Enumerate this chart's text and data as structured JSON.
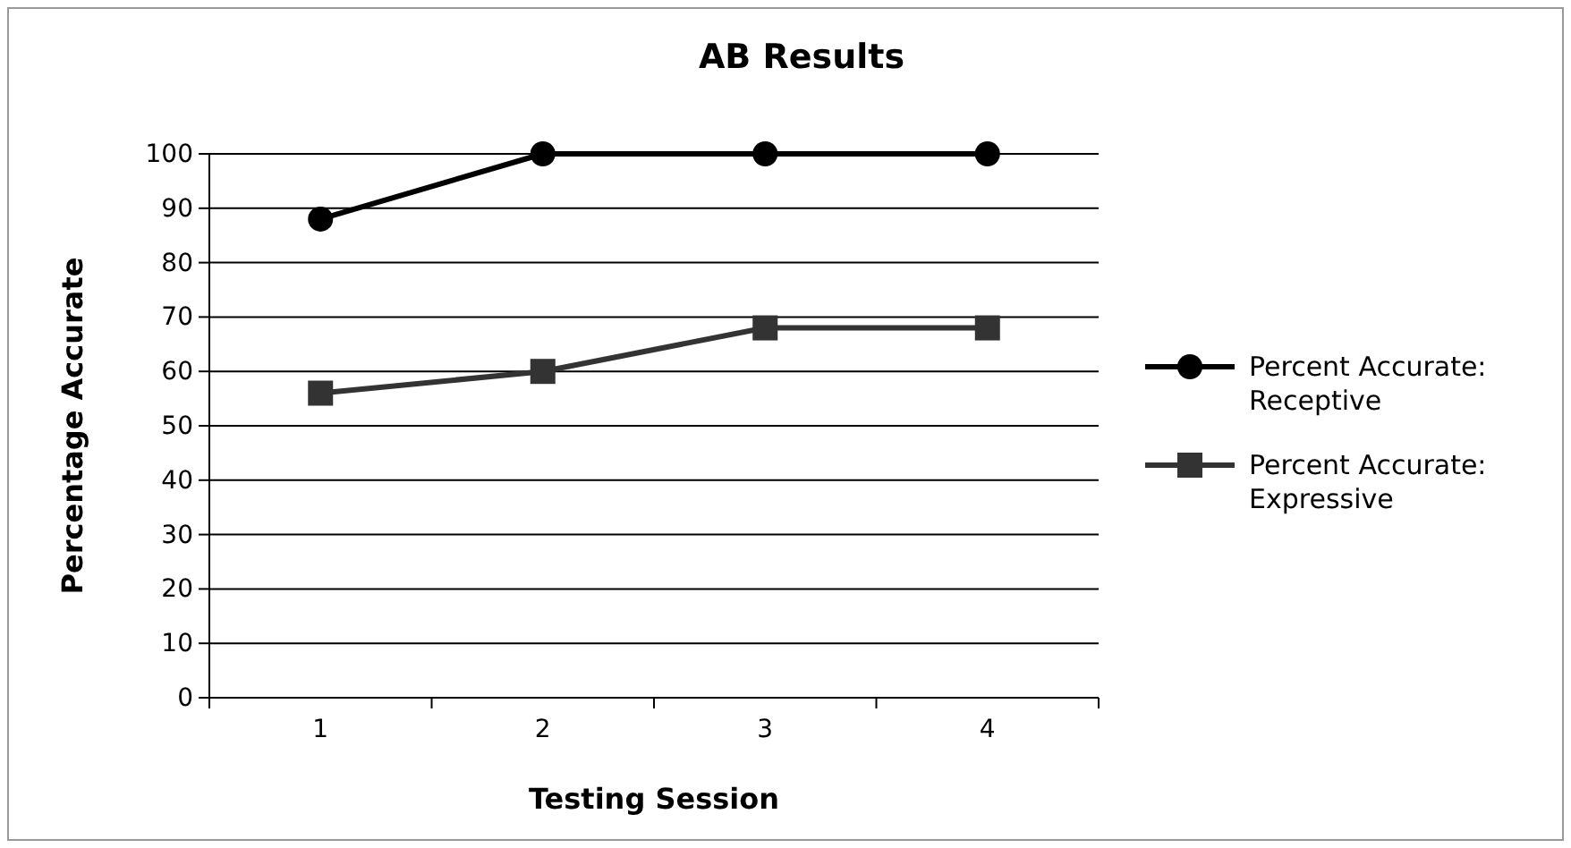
{
  "chart_data": {
    "type": "line",
    "title": "AB Results",
    "xlabel": "Testing Session",
    "ylabel": "Percentage Accurate",
    "categories": [
      "1",
      "2",
      "3",
      "4"
    ],
    "series": [
      {
        "name": "Percent Accurate: Receptive",
        "color": "#000000",
        "marker": "circle",
        "values": [
          88,
          100,
          100,
          100
        ]
      },
      {
        "name": "Percent Accurate: Expressive",
        "color": "#333333",
        "marker": "square",
        "values": [
          56,
          60,
          68,
          68
        ]
      }
    ],
    "ylim": [
      0,
      100
    ],
    "yticks": [
      0,
      10,
      20,
      30,
      40,
      50,
      60,
      70,
      80,
      90,
      100
    ],
    "grid": "y",
    "legend": "right",
    "line_style": "solid"
  }
}
